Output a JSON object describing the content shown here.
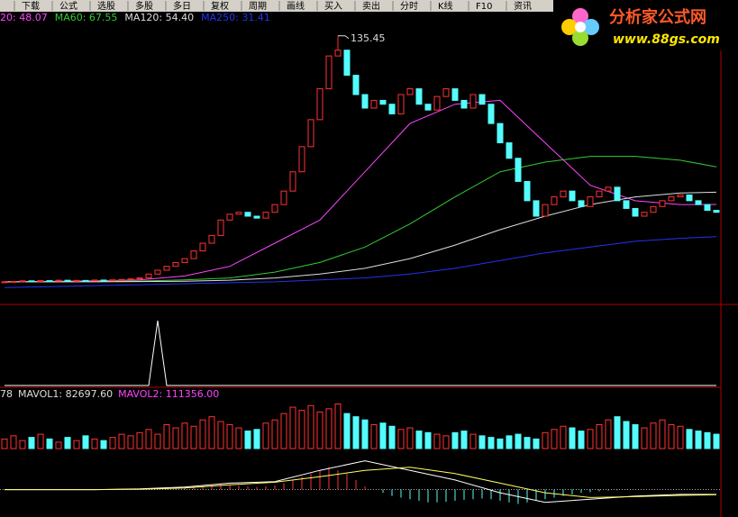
{
  "menu": [
    "下载",
    "公式",
    "选股",
    "多股",
    "多日",
    "复权",
    "周期",
    "画线",
    "买入",
    "卖出",
    "分时",
    "K线",
    "F10",
    "资讯"
  ],
  "logo": {
    "name": "分析家公式网",
    "url": "www.88gs.com"
  },
  "chart_data": {
    "type": "candlestick",
    "ylim": [
      0,
      140
    ],
    "up_color": "#ff3232",
    "down_color": "#54fcfc",
    "open": [
      7.9,
      8,
      8.2,
      8.5,
      8.3,
      8.6,
      8.4,
      8.8,
      8.5,
      8.7,
      8.6,
      8.9,
      8.7,
      9,
      9.2,
      9.5,
      10,
      12,
      14,
      16,
      18,
      20,
      24,
      28,
      32,
      40,
      43,
      44,
      42,
      41,
      44,
      48,
      55,
      65,
      78,
      92,
      108,
      125,
      128,
      115,
      105,
      98,
      102,
      100,
      95,
      105,
      108,
      100,
      97,
      104,
      108,
      102,
      98,
      105,
      100,
      90,
      80,
      72,
      60,
      50,
      42,
      48,
      52,
      55,
      50,
      47,
      52,
      55,
      57,
      50,
      46,
      42,
      44,
      47,
      50,
      52,
      53,
      50,
      48,
      45
    ],
    "close": [
      8,
      8.2,
      8.5,
      8.3,
      8.6,
      8.4,
      8.8,
      8.5,
      8.7,
      8.6,
      8.9,
      8.7,
      9,
      9.2,
      9.5,
      10,
      12,
      14,
      16,
      18,
      20,
      24,
      28,
      32,
      40,
      43,
      44,
      42,
      41,
      44,
      48,
      55,
      65,
      78,
      92,
      108,
      125,
      128,
      115,
      105,
      98,
      102,
      100,
      95,
      105,
      108,
      100,
      97,
      104,
      108,
      102,
      98,
      105,
      100,
      90,
      80,
      72,
      60,
      50,
      42,
      48,
      52,
      55,
      50,
      47,
      52,
      55,
      57,
      50,
      46,
      42,
      44,
      47,
      50,
      52,
      53,
      50,
      48,
      45,
      44
    ],
    "peak_index": 37,
    "peak_value": 135.45,
    "ma_x": [
      0,
      5,
      10,
      15,
      20,
      25,
      30,
      35,
      40,
      45,
      50,
      55,
      60,
      65,
      70,
      75,
      79
    ],
    "ma": [
      {
        "color": "#ff44ff",
        "values": [
          8,
          8.2,
          8.5,
          9,
          11,
          16,
          28,
          40,
          65,
          90,
          100,
          102,
          80,
          58,
          50,
          48,
          48.07
        ]
      },
      {
        "color": "#33cc33",
        "values": [
          8,
          8,
          8.2,
          8.4,
          9,
          10,
          13,
          18,
          26,
          38,
          52,
          65,
          70,
          73,
          73,
          71,
          67.55
        ]
      },
      {
        "color": "#dddddd",
        "values": [
          8,
          8,
          8,
          8.1,
          8.3,
          8.8,
          10,
          12,
          15,
          20,
          27,
          35,
          42,
          48,
          52,
          54,
          54.4
        ]
      },
      {
        "color": "#2233ee",
        "values": [
          5,
          5.5,
          6,
          6.5,
          7,
          7.5,
          8,
          9,
          10,
          12,
          15,
          19,
          23,
          26,
          29,
          30.5,
          31.41
        ]
      }
    ],
    "legend": [
      {
        "text": "20: 48.07",
        "color": "#ff44ff"
      },
      {
        "text": "MA60: 67.55",
        "color": "#33cc33"
      },
      {
        "text": "MA120: 54.40",
        "color": "#dddddd"
      },
      {
        "text": "MA250: 31.41",
        "color": "#2233ee"
      }
    ],
    "signal": {
      "color": "#ffffff",
      "values": [
        0,
        0,
        0,
        0,
        0,
        0,
        0,
        0,
        0,
        0,
        0,
        0,
        0,
        0,
        0,
        0,
        0,
        1,
        0,
        0,
        0,
        0,
        0,
        0,
        0,
        0,
        0,
        0,
        0,
        0,
        0,
        0,
        0,
        0,
        0,
        0,
        0,
        0,
        0,
        0,
        0,
        0,
        0,
        0,
        0,
        0,
        0,
        0,
        0,
        0,
        0,
        0,
        0,
        0,
        0,
        0,
        0,
        0,
        0,
        0,
        0,
        0,
        0,
        0,
        0,
        0,
        0,
        0,
        0,
        0,
        0,
        0,
        0,
        0,
        0,
        0,
        0,
        0,
        0,
        0
      ]
    },
    "volume": {
      "ylim": [
        0,
        300000
      ],
      "values": [
        60000,
        80000,
        50000,
        70000,
        90000,
        60000,
        40000,
        70000,
        50000,
        80000,
        60000,
        50000,
        70000,
        90000,
        80000,
        100000,
        120000,
        90000,
        150000,
        130000,
        160000,
        140000,
        180000,
        200000,
        170000,
        150000,
        130000,
        110000,
        120000,
        160000,
        180000,
        220000,
        260000,
        240000,
        270000,
        230000,
        250000,
        280000,
        220000,
        200000,
        180000,
        150000,
        160000,
        140000,
        120000,
        130000,
        110000,
        100000,
        90000,
        80000,
        100000,
        110000,
        90000,
        80000,
        70000,
        60000,
        80000,
        90000,
        70000,
        60000,
        100000,
        120000,
        140000,
        130000,
        110000,
        120000,
        150000,
        180000,
        200000,
        170000,
        150000,
        130000,
        160000,
        180000,
        150000,
        140000,
        120000,
        110000,
        100000,
        90000
      ],
      "labels": [
        {
          "text": "78",
          "color": "#dddddd"
        },
        {
          "text": "MAVOL1: 82697.60",
          "color": "#dddddd"
        },
        {
          "text": "MAVOL2: 111356.00",
          "color": "#ff44ff"
        }
      ]
    },
    "macd": {
      "ylim": [
        -8,
        10
      ],
      "hist": [
        0,
        0,
        0,
        0,
        0,
        0,
        0,
        0,
        0,
        0,
        0,
        0,
        0,
        0,
        0,
        0.2,
        0.3,
        0.4,
        0.5,
        0.6,
        0.8,
        1,
        1.2,
        1.5,
        1.8,
        1.5,
        1.2,
        1,
        0.8,
        1,
        1.3,
        2,
        3,
        4,
        5,
        6,
        7,
        6,
        5,
        3,
        1,
        0,
        -1,
        -2,
        -2.5,
        -3,
        -3.5,
        -4,
        -4,
        -3.8,
        -3.5,
        -3.2,
        -3,
        -2.8,
        -3,
        -3.5,
        -4,
        -4.5,
        -4,
        -3.5,
        -3,
        -2.5,
        -2,
        -1.5,
        -1,
        -0.8,
        -0.5,
        -0.3,
        -0.2,
        -0.1,
        0,
        0.1,
        0.2,
        0.1,
        0,
        -0.1,
        0,
        0.1,
        0.1,
        0
      ],
      "dif": {
        "color": "#ffffff",
        "values": [
          0,
          0,
          0,
          0.2,
          0.8,
          2,
          2.5,
          6,
          9,
          6,
          3,
          -1,
          -4,
          -3,
          -2,
          -1.5,
          -1.5
        ]
      },
      "dea": {
        "color": "#ffff66",
        "values": [
          0,
          0,
          0,
          0.1,
          0.5,
          1.5,
          2.3,
          4,
          6,
          7,
          5,
          2,
          -1,
          -2.5,
          -2.2,
          -1.8,
          -1.6
        ]
      }
    }
  }
}
